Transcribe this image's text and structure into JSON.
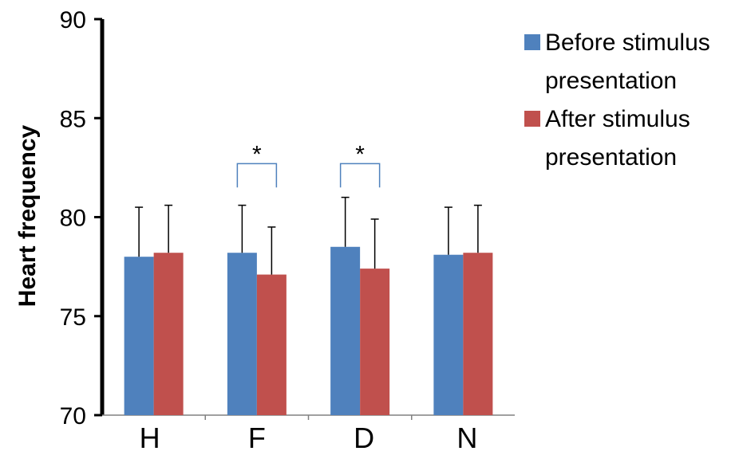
{
  "chart_data": {
    "type": "bar",
    "title": "",
    "xlabel": "",
    "ylabel": "Heart frequency",
    "ylim": [
      70,
      90
    ],
    "yticks": [
      70,
      75,
      80,
      85,
      90
    ],
    "categories": [
      "H",
      "F",
      "D",
      "N"
    ],
    "series": [
      {
        "name": "Before stimulus presentation",
        "color": "#4F81BD",
        "values": [
          78.0,
          78.2,
          78.5,
          78.1
        ],
        "errors": [
          2.5,
          2.4,
          2.5,
          2.4
        ]
      },
      {
        "name": "After stimulus presentation",
        "color": "#C0504D",
        "values": [
          78.2,
          77.1,
          77.4,
          78.2
        ],
        "errors": [
          2.4,
          2.4,
          2.5,
          2.4
        ]
      }
    ],
    "significance": [
      {
        "category": "F",
        "label": "*"
      },
      {
        "category": "D",
        "label": "*"
      }
    ],
    "legend_position": "top-right",
    "grid": false
  }
}
